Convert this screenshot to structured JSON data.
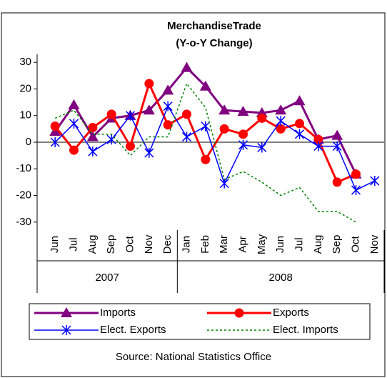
{
  "chart_data": {
    "type": "line",
    "title": "MerchandiseTrade",
    "subtitle": "(Y-o-Y Change)",
    "source": "Source: National Statistics Office",
    "category_groups": [
      {
        "label": "2007",
        "categories": [
          "Jun",
          "Jul",
          "Aug",
          "Sep",
          "Oct",
          "Nov",
          "Dec"
        ]
      },
      {
        "label": "2008",
        "categories": [
          "Jan",
          "Feb",
          "Mar",
          "Apr",
          "May",
          "Jun",
          "Jul",
          "Aug",
          "Sep",
          "Oct",
          "Nov"
        ]
      }
    ],
    "series": [
      {
        "name": "Imports",
        "color": "#800080",
        "marker": "triangle",
        "values": [
          4,
          14,
          2,
          9,
          10,
          12,
          19.5,
          28,
          21,
          12,
          11.5,
          11,
          12,
          15.5,
          1,
          2.5,
          -12,
          null
        ]
      },
      {
        "name": "Exports",
        "color": "#ff0000",
        "marker": "circle",
        "values": [
          6,
          -3,
          5.5,
          10.5,
          -1.5,
          22,
          6.5,
          10.5,
          -6.5,
          5,
          3,
          9,
          5,
          7,
          1,
          -15,
          -12,
          null
        ]
      },
      {
        "name": "Elect. Exports",
        "color": "#0000ff",
        "marker": "star",
        "values": [
          0,
          7,
          -3.5,
          1,
          10,
          -4,
          13.5,
          2,
          6,
          -15.5,
          -1,
          -2,
          8,
          3,
          -1.5,
          -1.5,
          -18,
          -14.5
        ]
      },
      {
        "name": "Elect. Imports",
        "color": "#008000",
        "marker": "none",
        "dash": true,
        "values": [
          9,
          12,
          3,
          3,
          -5,
          2,
          2,
          22,
          13,
          -14,
          -11,
          -15,
          -20,
          -17,
          -26,
          -26,
          -30,
          null
        ]
      }
    ],
    "ylim": [
      -33,
      33
    ],
    "yticks": [
      -30,
      -20,
      -10,
      0,
      10,
      20,
      30
    ],
    "grid": false
  }
}
